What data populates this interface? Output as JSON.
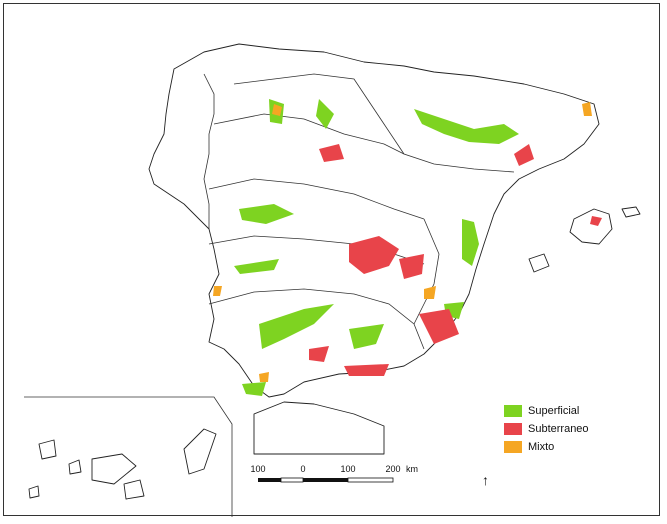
{
  "colors": {
    "superficial": "#7ed321",
    "subterraneo": "#e8444a",
    "mixto": "#f5a623",
    "coast": "#222222",
    "background": "#ffffff"
  },
  "legend": {
    "items": [
      {
        "label": "Superficial",
        "color_key": "superficial"
      },
      {
        "label": "Subterraneo",
        "color_key": "subterraneo"
      },
      {
        "label": "Mixto",
        "color_key": "mixto"
      }
    ]
  },
  "scale_bar": {
    "ticks": [
      "100",
      "0",
      "100",
      "200"
    ],
    "unit": "km"
  },
  "north_arrow": {
    "symbol": "↑"
  }
}
